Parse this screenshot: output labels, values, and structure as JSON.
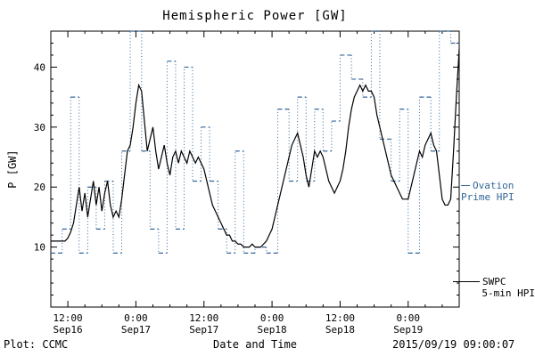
{
  "title": "Hemispheric Power [GW]",
  "footer": {
    "credit": "Plot: CCMC",
    "timestamp": "2015/09/19 09:00:07"
  },
  "legend": {
    "ovation": {
      "line1": "Ovation",
      "line2": "Prime HPI",
      "color": "#336699"
    },
    "swpc": {
      "line1": "SWPC",
      "line2": "5-min HPI",
      "color": "#000000"
    }
  },
  "chart_data": {
    "type": "line",
    "title": "Hemispheric Power [GW]",
    "xlabel": "Date and Time",
    "ylabel": "P [GW]",
    "ylim": [
      0,
      46
    ],
    "xlim_hours": [
      0,
      72
    ],
    "x_start": "2015-09-16 09:00",
    "x_end": "2015-09-19 09:00",
    "yticks": [
      10,
      20,
      30,
      40
    ],
    "y_minor_step": 2,
    "x_minor_step": 3,
    "grid": false,
    "legend_position": "right-outside",
    "xticks": [
      {
        "t": 3,
        "time": "12:00",
        "date": "Sep16"
      },
      {
        "t": 15,
        "time": "0:00",
        "date": "Sep17"
      },
      {
        "t": 27,
        "time": "12:00",
        "date": "Sep17"
      },
      {
        "t": 39,
        "time": "0:00",
        "date": "Sep18"
      },
      {
        "t": 51,
        "time": "12:00",
        "date": "Sep18"
      },
      {
        "t": 63,
        "time": "0:00",
        "date": "Sep19"
      }
    ],
    "series": [
      {
        "name": "Ovation Prime HPI",
        "style": "step-dashed",
        "color": "#336699",
        "x": [
          0,
          2,
          3.5,
          5,
          6.5,
          8,
          9.5,
          11,
          12.5,
          14,
          16,
          17.5,
          19,
          20.5,
          22,
          23.5,
          25,
          26.5,
          28,
          29.5,
          31,
          32.5,
          34,
          36,
          38,
          40,
          42,
          43.5,
          45,
          46.5,
          48,
          49.5,
          51,
          53,
          55,
          56.5,
          58,
          60,
          61.5,
          63,
          65,
          67,
          68.5,
          70.5
        ],
        "y": [
          9,
          13,
          35,
          9,
          20,
          13,
          21,
          9,
          26,
          46,
          26,
          13,
          9,
          41,
          13,
          40,
          21,
          30,
          21,
          13,
          9,
          26,
          9,
          10,
          9,
          33,
          21,
          35,
          21,
          33,
          26,
          31,
          42,
          38,
          35,
          46,
          28,
          21,
          33,
          9,
          35,
          26,
          46,
          44
        ]
      },
      {
        "name": "SWPC 5-min HPI",
        "style": "solid",
        "color": "#000000",
        "x0": 0,
        "dx": 0.5,
        "y": [
          11,
          11,
          11,
          11,
          11,
          11,
          11.5,
          12.5,
          14,
          17,
          20,
          16,
          19,
          15,
          18,
          21,
          17,
          20,
          16,
          19,
          21,
          17,
          15,
          16,
          15,
          18,
          22,
          26,
          27,
          30,
          34,
          37,
          36,
          31,
          26,
          28,
          30,
          26,
          23,
          25,
          27,
          24,
          22,
          25,
          26,
          24,
          26,
          25,
          24,
          26,
          25,
          24,
          25,
          24,
          23,
          21,
          19,
          17,
          16,
          15,
          14,
          13,
          12,
          12,
          11,
          11,
          10.5,
          10.5,
          10,
          10,
          10,
          10.5,
          10,
          10,
          10,
          10.5,
          11,
          12,
          13,
          15,
          17,
          19,
          21,
          23,
          25,
          27,
          28,
          29,
          27,
          25,
          22,
          20,
          23,
          26,
          25,
          26,
          25,
          23,
          21,
          20,
          19,
          20,
          21,
          23,
          26,
          30,
          33,
          35,
          36,
          37,
          36,
          37,
          36,
          36,
          35,
          32,
          30,
          28,
          26,
          24,
          22,
          21,
          20,
          19,
          18,
          18,
          18,
          20,
          22,
          24,
          26,
          25,
          27,
          28,
          29,
          27,
          26,
          22,
          18,
          17,
          17,
          18,
          26,
          35,
          43
        ]
      }
    ]
  }
}
